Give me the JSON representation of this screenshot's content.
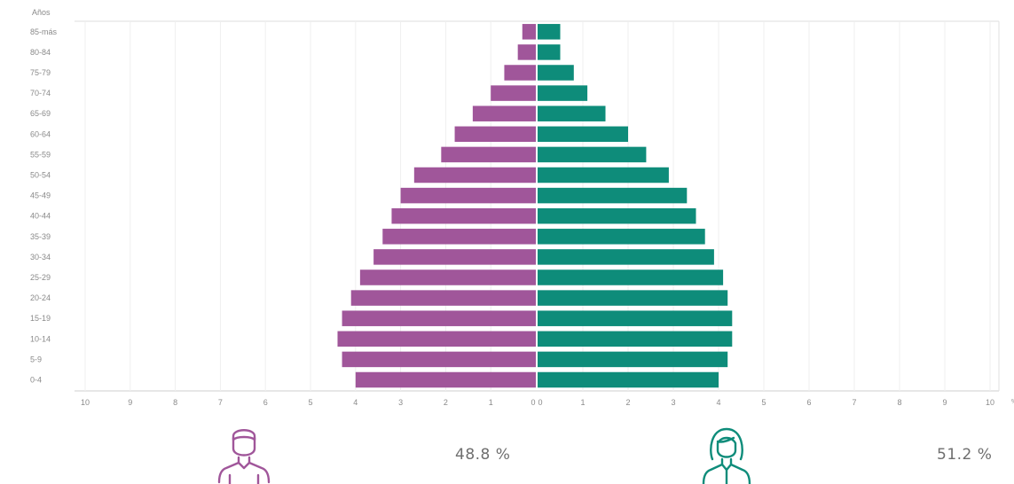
{
  "chart_data": {
    "type": "bar",
    "orientation": "horizontal-mirrored",
    "ylabel": "Años",
    "categories": [
      "0-4",
      "5-9",
      "10-14",
      "15-19",
      "20-24",
      "25-29",
      "30-34",
      "35-39",
      "40-44",
      "45-49",
      "50-54",
      "55-59",
      "60-64",
      "65-69",
      "70-74",
      "75-79",
      "80-84",
      "85-más"
    ],
    "series": [
      {
        "name": "",
        "side": "left",
        "color": "#a0569a",
        "values": [
          4.0,
          4.3,
          4.4,
          4.3,
          4.1,
          3.9,
          3.6,
          3.4,
          3.2,
          3.0,
          2.7,
          2.1,
          1.8,
          1.4,
          1.0,
          0.7,
          0.4,
          0.3
        ]
      },
      {
        "name": "",
        "side": "right",
        "color": "#0e8c7a",
        "values": [
          4.0,
          4.2,
          4.3,
          4.3,
          4.2,
          4.1,
          3.9,
          3.7,
          3.5,
          3.3,
          2.9,
          2.4,
          2.0,
          1.5,
          1.1,
          0.8,
          0.5,
          0.5
        ]
      }
    ],
    "xlim_left": [
      10,
      0
    ],
    "xlim_right": [
      0,
      10
    ],
    "xticks_left": [
      "10",
      "9",
      "8",
      "7",
      "6",
      "5",
      "4",
      "3",
      "2",
      "1",
      "0"
    ],
    "xticks_right": [
      "0",
      "1",
      "2",
      "3",
      "4",
      "5",
      "6",
      "7",
      "8",
      "9",
      "10"
    ],
    "x_unit_mark": "%",
    "grid": true
  },
  "summary": {
    "men_percent": "48.8 %",
    "women_percent": "51.2 %",
    "men_icon": "man-icon",
    "women_icon": "woman-icon"
  }
}
